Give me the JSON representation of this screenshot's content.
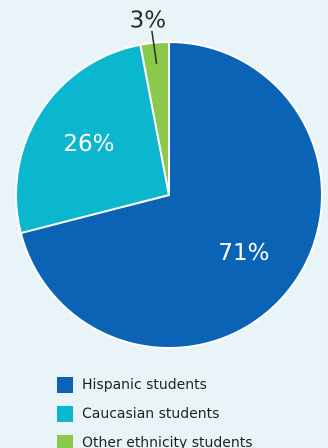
{
  "chart_data": {
    "type": "pie",
    "title": "",
    "start_angle_deg": 0,
    "direction": "clockwise",
    "legend_position": "bottom",
    "slices": [
      {
        "label": "Hispanic students",
        "value": 71,
        "display": "71%",
        "color": "#0b63b6",
        "label_placement": "inside"
      },
      {
        "label": "Caucasian students",
        "value": 26,
        "display": "26%",
        "color": "#0bb6cf",
        "label_placement": "inside"
      },
      {
        "label": "Other ethnicity students",
        "value": 3,
        "display": "3%",
        "color": "#8bc94d",
        "label_placement": "outside-leader"
      }
    ]
  }
}
